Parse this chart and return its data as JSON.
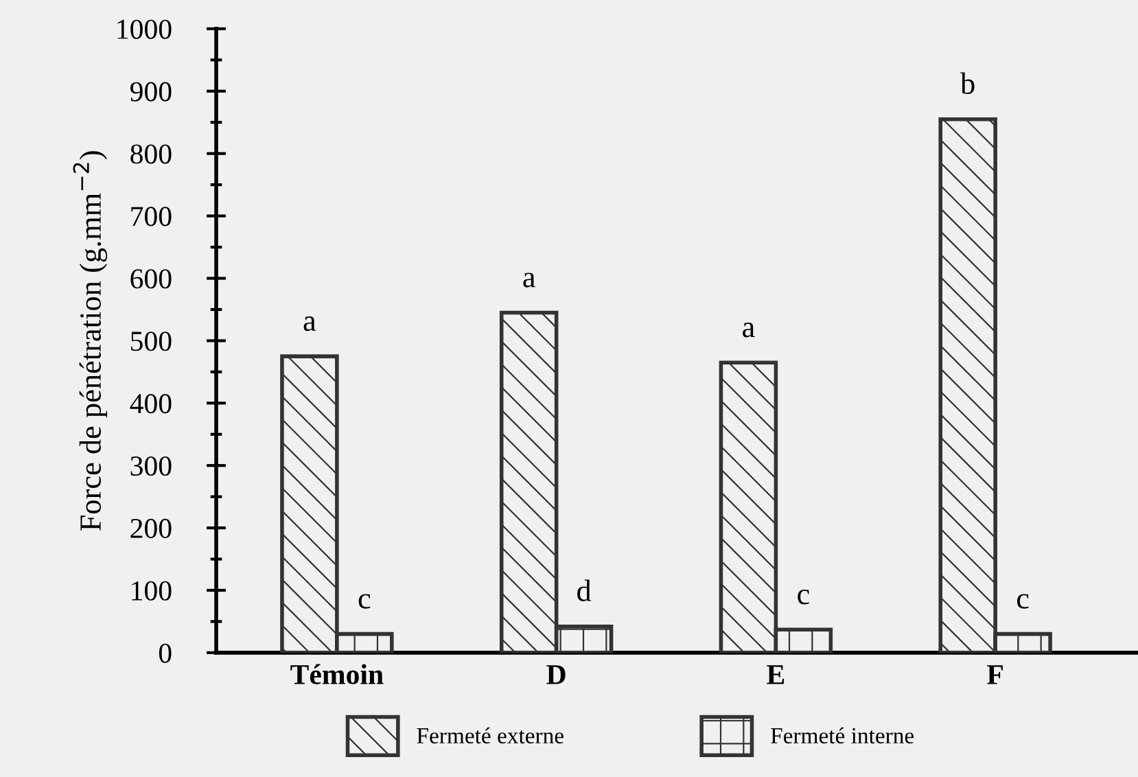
{
  "chart_data": {
    "type": "bar",
    "ylabel": "Force de pénétration (g.mm$^{−2}$)",
    "categories": [
      "Témoin",
      "D",
      "E",
      "F"
    ],
    "series": [
      {
        "name": "Fermeté externe",
        "color": "#333333",
        "values": [
          475,
          545,
          465,
          855
        ]
      },
      {
        "name": "Fermeté interne",
        "color": "#333333",
        "values": [
          30,
          42,
          37,
          30
        ]
      }
    ],
    "ylim": [
      0,
      1000
    ],
    "yticks": [
      0,
      100,
      200,
      300,
      400,
      500,
      600,
      700,
      800,
      900,
      1000
    ],
    "grid": false,
    "legend": "bottom",
    "annotations": [
      {
        "text": "a",
        "x": "Témoin",
        "y": 475
      },
      {
        "text": "c",
        "x": "Témoin",
        "y": 30
      },
      {
        "text": "a",
        "x": "D",
        "y": 545
      },
      {
        "text": "d",
        "x": "D",
        "y": 42
      },
      {
        "text": "a",
        "x": "E",
        "y": 465
      },
      {
        "text": "c",
        "x": "E",
        "y": 37
      },
      {
        "text": "b",
        "x": "F",
        "y": 855
      },
      {
        "text": "c",
        "x": "F",
        "y": 30
      }
    ]
  }
}
